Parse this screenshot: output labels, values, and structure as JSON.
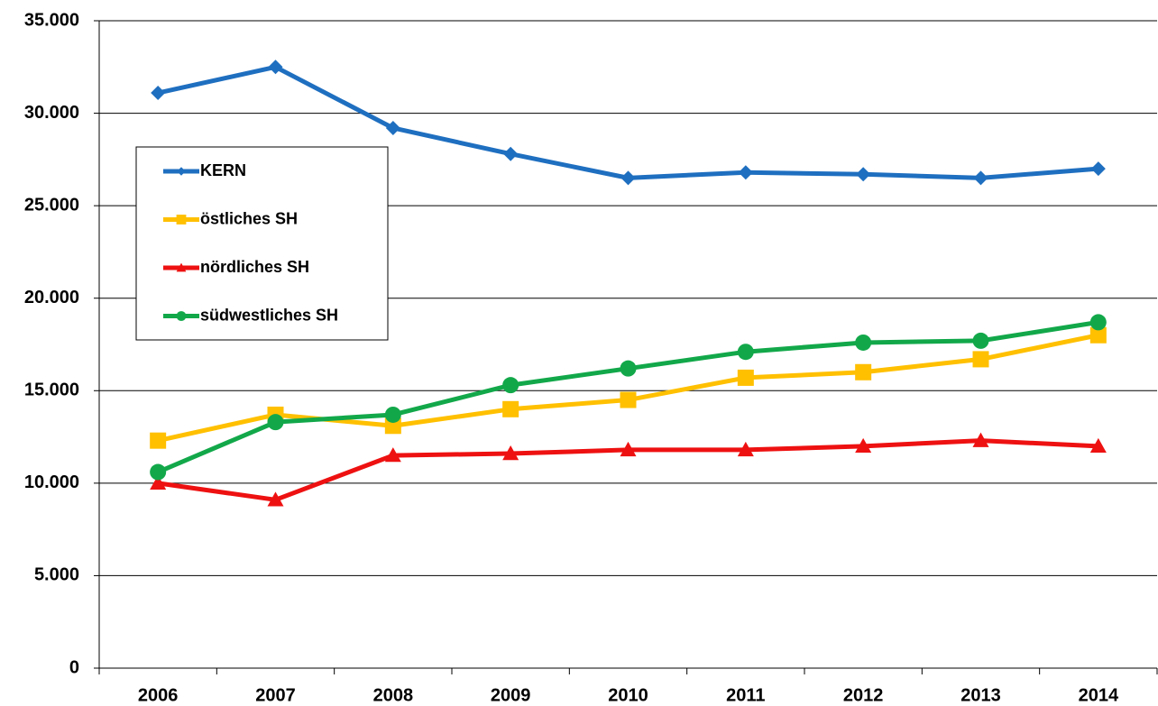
{
  "chart_data": {
    "type": "line",
    "categories": [
      "2006",
      "2007",
      "2008",
      "2009",
      "2010",
      "2011",
      "2012",
      "2013",
      "2014"
    ],
    "series": [
      {
        "name": "KERN",
        "color": "#1f6fc0",
        "marker": "diamond",
        "values": [
          31100,
          32500,
          29200,
          27800,
          26500,
          26800,
          26700,
          26500,
          27000
        ]
      },
      {
        "name": "östliches SH",
        "color": "#ffc000",
        "marker": "square",
        "values": [
          12300,
          13700,
          13100,
          14000,
          14500,
          15700,
          16000,
          16700,
          18000
        ]
      },
      {
        "name": "nördliches SH",
        "color": "#ee1111",
        "marker": "triangle",
        "values": [
          10000,
          9100,
          11500,
          11600,
          11800,
          11800,
          12000,
          12300,
          12000
        ]
      },
      {
        "name": "südwestliches SH",
        "color": "#12a84a",
        "marker": "circle",
        "values": [
          10600,
          13300,
          13700,
          15300,
          16200,
          17100,
          17600,
          17700,
          18700
        ]
      }
    ],
    "ylim": [
      0,
      35000
    ],
    "yticks": [
      0,
      {
        "value": 5000,
        "label": "5.000"
      },
      {
        "value": 10000,
        "label": "10.000"
      },
      {
        "value": 15000,
        "label": "15.000"
      },
      {
        "value": 20000,
        "label": "20.000"
      },
      {
        "value": 25000,
        "label": "25.000"
      },
      {
        "value": 30000,
        "label": "30.000"
      },
      {
        "value": 35000,
        "label": "35.000"
      }
    ],
    "grid": true,
    "legend": "upper left"
  }
}
